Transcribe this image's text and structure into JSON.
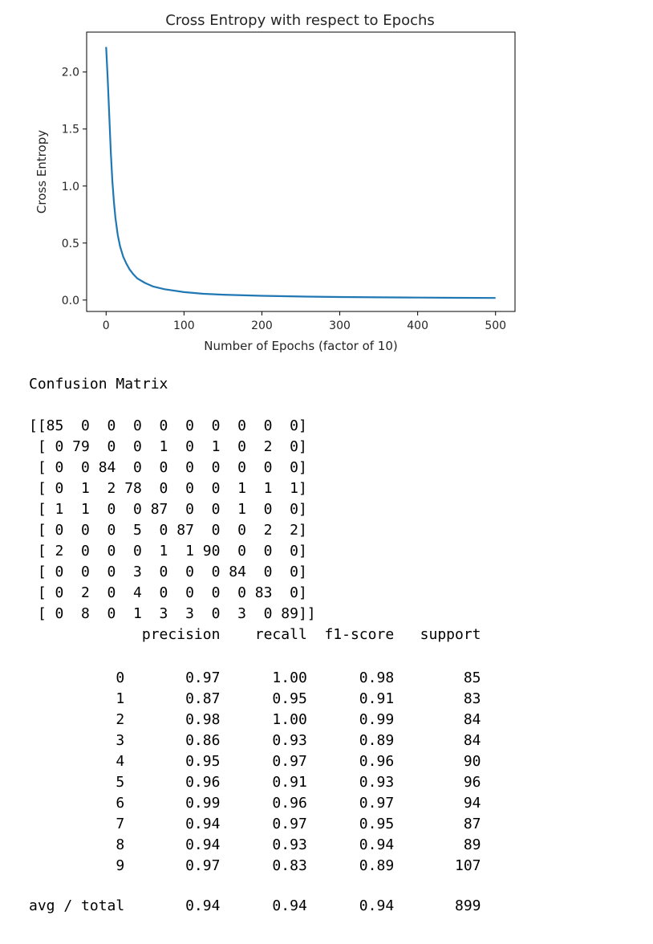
{
  "chart_data": {
    "type": "line",
    "title": "Cross Entropy with respect to Epochs",
    "xlabel": "Number of Epochs (factor of 10)",
    "ylabel": "Cross Entropy",
    "xlim": [
      -25,
      525
    ],
    "ylim": [
      -0.1,
      2.35
    ],
    "xticks": [
      0,
      100,
      200,
      300,
      400,
      500
    ],
    "xtick_labels": [
      "0",
      "100",
      "200",
      "300",
      "400",
      "500"
    ],
    "yticks": [
      0.0,
      0.5,
      1.0,
      1.5,
      2.0
    ],
    "ytick_labels": [
      "0.0",
      "0.5",
      "1.0",
      "1.5",
      "2.0"
    ],
    "grid": false,
    "series": [
      {
        "color": "#1f77b4",
        "x": [
          0,
          2,
          4,
          6,
          8,
          10,
          12,
          15,
          18,
          22,
          26,
          30,
          35,
          40,
          50,
          60,
          75,
          100,
          125,
          150,
          200,
          250,
          300,
          350,
          400,
          450,
          500
        ],
        "y": [
          2.22,
          1.95,
          1.62,
          1.3,
          1.05,
          0.86,
          0.72,
          0.57,
          0.47,
          0.38,
          0.32,
          0.27,
          0.225,
          0.19,
          0.15,
          0.12,
          0.095,
          0.07,
          0.055,
          0.047,
          0.037,
          0.031,
          0.027,
          0.024,
          0.022,
          0.02,
          0.018
        ]
      }
    ]
  },
  "confusion_matrix": {
    "title": "Confusion Matrix",
    "lines": [
      "[[85  0  0  0  0  0  0  0  0  0]",
      " [ 0 79  0  0  1  0  1  0  2  0]",
      " [ 0  0 84  0  0  0  0  0  0  0]",
      " [ 0  1  2 78  0  0  0  1  1  1]",
      " [ 1  1  0  0 87  0  0  1  0  0]",
      " [ 0  0  0  5  0 87  0  0  2  2]",
      " [ 2  0  0  0  1  1 90  0  0  0]",
      " [ 0  0  0  3  0  0  0 84  0  0]",
      " [ 0  2  0  4  0  0  0  0 83  0]",
      " [ 0  8  0  1  3  3  0  3  0 89]]"
    ]
  },
  "classification_report": {
    "header": "             precision    recall  f1-score   support",
    "rows": [
      "          0       0.97      1.00      0.98        85",
      "          1       0.87      0.95      0.91        83",
      "          2       0.98      1.00      0.99        84",
      "          3       0.86      0.93      0.89        84",
      "          4       0.95      0.97      0.96        90",
      "          5       0.96      0.91      0.93        96",
      "          6       0.99      0.96      0.97        94",
      "          7       0.94      0.97      0.95        87",
      "          8       0.94      0.93      0.94        89",
      "          9       0.97      0.83      0.89       107"
    ],
    "avg": "avg / total       0.94      0.94      0.94       899"
  }
}
